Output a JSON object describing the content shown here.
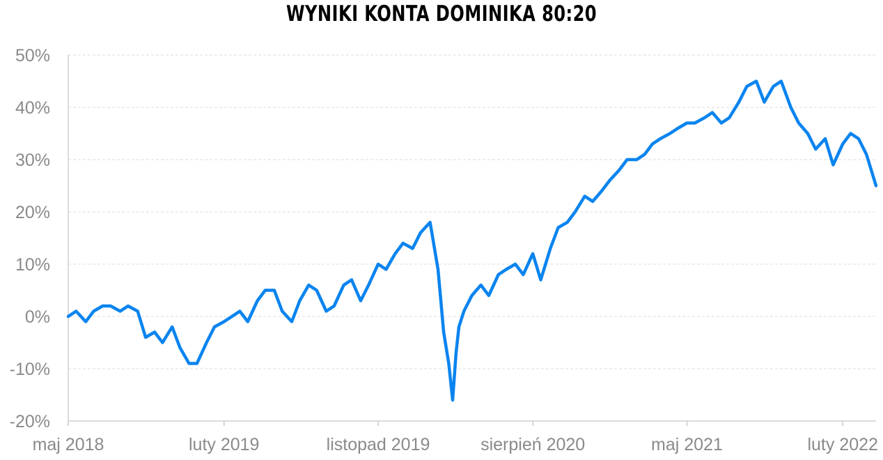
{
  "chart_data": {
    "type": "line",
    "title": "WYNIKI KONTA DOMINIKA 80:20",
    "xlabel": "",
    "ylabel": "",
    "ylim": [
      -20,
      50
    ],
    "y_ticks": [
      "-20%",
      "-10%",
      "0%",
      "10%",
      "20%",
      "30%",
      "40%",
      "50%"
    ],
    "y_tick_values": [
      -20,
      -10,
      0,
      10,
      20,
      30,
      40,
      50
    ],
    "x_ticks": [
      "maj 2018",
      "luty 2019",
      "listopad 2019",
      "sierpień 2020",
      "maj 2021",
      "luty 2022"
    ],
    "x_tick_dates": [
      "2018-05-01",
      "2019-02-01",
      "2019-11-01",
      "2020-08-01",
      "2021-05-01",
      "2022-02-01"
    ],
    "xlim": [
      "2018-05-01",
      "2022-04-01"
    ],
    "grid": true,
    "legend": "none",
    "line_color": "#0a84ef",
    "series": [
      {
        "x": [
          "2018-05-01",
          "2018-05-15",
          "2018-06-01",
          "2018-06-15",
          "2018-07-01",
          "2018-07-15",
          "2018-08-01",
          "2018-08-15",
          "2018-09-01",
          "2018-09-15",
          "2018-10-01",
          "2018-10-15",
          "2018-11-01",
          "2018-11-15",
          "2018-12-01",
          "2018-12-15",
          "2019-01-01",
          "2019-01-15",
          "2019-02-01",
          "2019-02-15",
          "2019-03-01",
          "2019-03-15",
          "2019-04-01",
          "2019-04-15",
          "2019-05-01",
          "2019-05-15",
          "2019-06-01",
          "2019-06-15",
          "2019-07-01",
          "2019-07-15",
          "2019-08-01",
          "2019-08-15",
          "2019-09-01",
          "2019-09-15",
          "2019-10-01",
          "2019-10-15",
          "2019-11-01",
          "2019-11-15",
          "2019-12-01",
          "2019-12-15",
          "2020-01-01",
          "2020-01-15",
          "2020-02-01",
          "2020-02-15",
          "2020-02-25",
          "2020-03-05",
          "2020-03-12",
          "2020-03-18",
          "2020-03-23",
          "2020-04-01",
          "2020-04-15",
          "2020-05-01",
          "2020-05-15",
          "2020-06-01",
          "2020-06-15",
          "2020-07-01",
          "2020-07-15",
          "2020-08-01",
          "2020-08-15",
          "2020-09-01",
          "2020-09-15",
          "2020-10-01",
          "2020-10-15",
          "2020-11-01",
          "2020-11-15",
          "2020-12-01",
          "2020-12-15",
          "2021-01-01",
          "2021-01-15",
          "2021-02-01",
          "2021-02-15",
          "2021-03-01",
          "2021-03-15",
          "2021-04-01",
          "2021-04-15",
          "2021-05-01",
          "2021-05-15",
          "2021-06-01",
          "2021-06-15",
          "2021-07-01",
          "2021-07-15",
          "2021-08-01",
          "2021-08-15",
          "2021-09-01",
          "2021-09-15",
          "2021-10-01",
          "2021-10-15",
          "2021-11-01",
          "2021-11-15",
          "2021-12-01",
          "2021-12-15",
          "2022-01-01",
          "2022-01-15",
          "2022-02-01",
          "2022-02-15",
          "2022-03-01",
          "2022-03-15",
          "2022-04-01"
        ],
        "y": [
          0,
          1,
          -1,
          1,
          2,
          2,
          1,
          2,
          1,
          -4,
          -3,
          -5,
          -2,
          -6,
          -9,
          -9,
          -5,
          -2,
          -1,
          0,
          1,
          -1,
          3,
          5,
          5,
          1,
          -1,
          3,
          6,
          5,
          1,
          2,
          6,
          7,
          3,
          6,
          10,
          9,
          12,
          14,
          13,
          16,
          18,
          9,
          -3,
          -9,
          -16,
          -7,
          -2,
          1,
          4,
          6,
          4,
          8,
          9,
          10,
          8,
          12,
          7,
          13,
          17,
          18,
          20,
          23,
          22,
          24,
          26,
          28,
          30,
          30,
          31,
          33,
          34,
          35,
          36,
          37,
          37,
          38,
          39,
          37,
          38,
          41,
          44,
          45,
          41,
          44,
          45,
          40,
          37,
          35,
          32,
          34,
          29,
          33,
          35,
          34,
          31,
          25
        ]
      }
    ]
  }
}
